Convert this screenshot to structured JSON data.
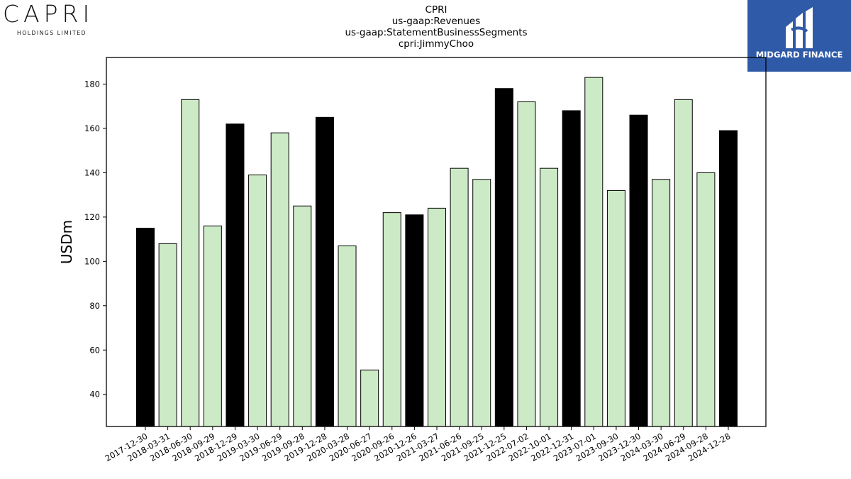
{
  "logos": {
    "left": {
      "brand": "CAPRI",
      "sub": "HOLDINGS LIMITED"
    },
    "right": {
      "name": "MIDGARD FINANCE",
      "color": "#2f5aa8"
    }
  },
  "chart_data": {
    "type": "bar",
    "title_lines": [
      "CPRI",
      "us-gaap:Revenues",
      "us-gaap:StatementBusinessSegments",
      "cpri:JimmyChoo"
    ],
    "ylabel": "USDm",
    "xlabel": "",
    "ylim": [
      25.5,
      192
    ],
    "yticks": [
      40,
      60,
      80,
      100,
      120,
      140,
      160,
      180
    ],
    "grid": false,
    "colors": {
      "highlight": "#000000",
      "normal": "#cdeac6",
      "edge": "#000000"
    },
    "categories": [
      "2017-12-30",
      "2018-03-31",
      "2018-06-30",
      "2018-09-29",
      "2018-12-29",
      "2019-03-30",
      "2019-06-29",
      "2019-09-28",
      "2019-12-28",
      "2020-03-28",
      "2020-06-27",
      "2020-09-26",
      "2020-12-26",
      "2021-03-27",
      "2021-06-26",
      "2021-09-25",
      "2021-12-25",
      "2022-07-02",
      "2022-10-01",
      "2022-12-31",
      "2023-07-01",
      "2023-09-30",
      "2023-12-30",
      "2024-03-30",
      "2024-06-29",
      "2024-09-28",
      "2024-12-28"
    ],
    "values": [
      115,
      108,
      173,
      116,
      162,
      139,
      158,
      125,
      165,
      107,
      51,
      122,
      121,
      124,
      142,
      137,
      178,
      172,
      142,
      168,
      183,
      132,
      166,
      137,
      173,
      140,
      159
    ],
    "highlight": [
      true,
      false,
      false,
      false,
      true,
      false,
      false,
      false,
      true,
      false,
      false,
      false,
      true,
      false,
      false,
      false,
      true,
      false,
      false,
      true,
      false,
      false,
      true,
      false,
      false,
      false,
      true
    ]
  }
}
